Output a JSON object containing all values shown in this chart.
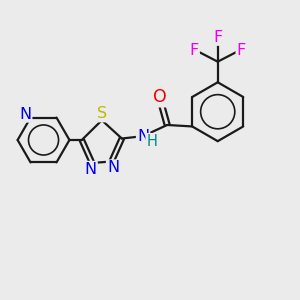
{
  "background_color": "#ebebeb",
  "bond_color": "#1a1a1a",
  "atom_colors": {
    "N": "#0000ee",
    "S": "#bbbb00",
    "O": "#ee0000",
    "F": "#ee00ee",
    "H": "#008888",
    "C": "#1a1a1a"
  },
  "font_size": 11.5,
  "lw": 1.6,
  "figsize": [
    3.0,
    3.0
  ],
  "dpi": 100
}
